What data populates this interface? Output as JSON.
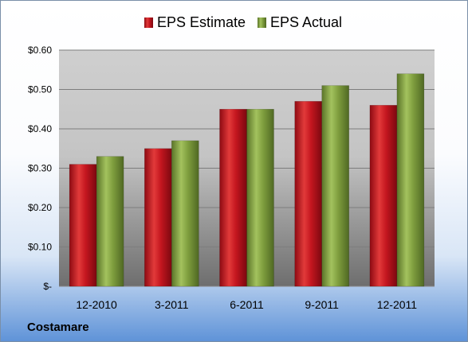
{
  "chart_data": {
    "type": "bar",
    "categories": [
      "12-2010",
      "3-2011",
      "6-2011",
      "9-2011",
      "12-2011"
    ],
    "series": [
      {
        "name": "EPS Estimate",
        "values": [
          0.31,
          0.35,
          0.45,
          0.47,
          0.46
        ],
        "color": "#c0121e"
      },
      {
        "name": "EPS Actual",
        "values": [
          0.33,
          0.37,
          0.45,
          0.51,
          0.54
        ],
        "color": "#7a9a3c"
      }
    ],
    "ylim": [
      0,
      0.6
    ],
    "yticks": [
      {
        "value": 0,
        "label": "$-"
      },
      {
        "value": 0.1,
        "label": "$0.10"
      },
      {
        "value": 0.2,
        "label": "$0.20"
      },
      {
        "value": 0.3,
        "label": "$0.30"
      },
      {
        "value": 0.4,
        "label": "$0.40"
      },
      {
        "value": 0.5,
        "label": "$0.50"
      },
      {
        "value": 0.6,
        "label": "$0.60"
      }
    ],
    "grid": true,
    "legend_position": "top"
  },
  "company": "Costamare"
}
